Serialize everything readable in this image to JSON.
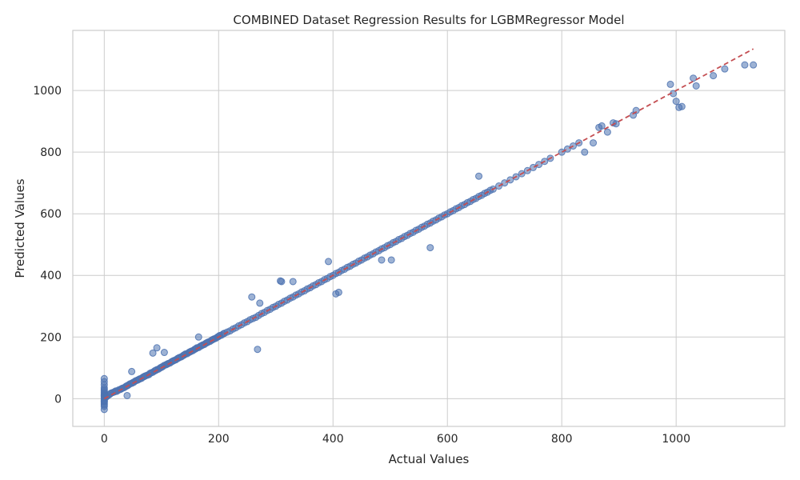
{
  "chart_data": {
    "type": "scatter",
    "title": "COMBINED Dataset Regression Results for LGBMRegressor Model",
    "xlabel": "Actual Values",
    "ylabel": "Predicted Values",
    "xlim": [
      -55,
      1190
    ],
    "ylim": [
      -90,
      1195
    ],
    "xticks": [
      0,
      200,
      400,
      600,
      800,
      1000
    ],
    "yticks": [
      0,
      200,
      400,
      600,
      800,
      1000
    ],
    "grid": true,
    "legend": "none",
    "point_color": "#4c72b0",
    "reference_line": {
      "style": "dashed",
      "color": "#c44e52",
      "x": [
        0,
        1135
      ],
      "y": [
        0,
        1135
      ]
    },
    "points": {
      "x": [
        0,
        0,
        0,
        0,
        0,
        0,
        0,
        0,
        0,
        0,
        0,
        0,
        0,
        0,
        0,
        0,
        0,
        0,
        0,
        0,
        3,
        5,
        8,
        10,
        12,
        15,
        18,
        20,
        22,
        25,
        28,
        30,
        32,
        35,
        38,
        40,
        42,
        45,
        48,
        50,
        52,
        55,
        58,
        60,
        62,
        65,
        68,
        70,
        72,
        75,
        78,
        80,
        82,
        85,
        88,
        90,
        92,
        95,
        98,
        100,
        102,
        105,
        108,
        110,
        112,
        115,
        118,
        120,
        122,
        125,
        128,
        130,
        132,
        135,
        138,
        140,
        142,
        145,
        148,
        150,
        152,
        155,
        158,
        160,
        162,
        165,
        168,
        170,
        172,
        175,
        178,
        180,
        182,
        185,
        188,
        190,
        192,
        195,
        198,
        200,
        202,
        205,
        208,
        210,
        215,
        220,
        225,
        230,
        235,
        240,
        245,
        250,
        255,
        260,
        265,
        270,
        275,
        280,
        285,
        290,
        295,
        300,
        305,
        310,
        315,
        320,
        325,
        330,
        335,
        340,
        345,
        350,
        355,
        360,
        365,
        370,
        375,
        380,
        385,
        390,
        395,
        400,
        405,
        410,
        415,
        420,
        425,
        430,
        435,
        440,
        445,
        450,
        455,
        460,
        465,
        470,
        475,
        480,
        485,
        490,
        495,
        500,
        505,
        510,
        515,
        520,
        525,
        530,
        535,
        540,
        545,
        550,
        555,
        560,
        565,
        570,
        575,
        580,
        585,
        590,
        595,
        600,
        605,
        610,
        615,
        620,
        625,
        630,
        635,
        640,
        645,
        650,
        655,
        660,
        665,
        670,
        675,
        680,
        690,
        700,
        710,
        720,
        730,
        740,
        750,
        760,
        770,
        780,
        800,
        810,
        820,
        830,
        840,
        855,
        865,
        870,
        880,
        890,
        895,
        925,
        930,
        990,
        995,
        1000,
        1005,
        1010,
        1030,
        1035,
        1065,
        1085,
        1120,
        1135,
        40,
        48,
        85,
        92,
        105,
        165,
        258,
        268,
        272,
        308,
        310,
        330,
        392,
        405,
        410,
        485,
        502,
        570,
        655
      ],
      "y": [
        0,
        -35,
        -25,
        -15,
        -10,
        -5,
        5,
        10,
        15,
        20,
        25,
        30,
        45,
        55,
        65,
        35,
        -20,
        12,
        8,
        -8,
        5,
        8,
        12,
        15,
        18,
        20,
        22,
        25,
        24,
        28,
        30,
        32,
        34,
        36,
        40,
        42,
        44,
        48,
        50,
        52,
        54,
        58,
        60,
        62,
        64,
        66,
        70,
        72,
        74,
        76,
        78,
        82,
        84,
        86,
        90,
        92,
        94,
        96,
        100,
        102,
        104,
        108,
        110,
        112,
        114,
        116,
        120,
        122,
        124,
        126,
        130,
        132,
        134,
        136,
        140,
        142,
        145,
        146,
        150,
        152,
        154,
        156,
        160,
        162,
        165,
        166,
        170,
        172,
        174,
        176,
        180,
        182,
        184,
        186,
        190,
        192,
        194,
        196,
        200,
        202,
        205,
        206,
        210,
        212,
        216,
        220,
        226,
        230,
        236,
        240,
        246,
        250,
        256,
        260,
        264,
        270,
        276,
        280,
        286,
        290,
        296,
        300,
        306,
        310,
        316,
        320,
        326,
        330,
        336,
        340,
        346,
        350,
        356,
        360,
        366,
        370,
        376,
        380,
        386,
        390,
        396,
        400,
        406,
        410,
        416,
        420,
        426,
        430,
        436,
        440,
        446,
        450,
        456,
        460,
        466,
        470,
        476,
        480,
        486,
        490,
        496,
        500,
        506,
        510,
        516,
        520,
        526,
        530,
        536,
        540,
        546,
        550,
        556,
        560,
        566,
        570,
        576,
        580,
        586,
        590,
        596,
        600,
        606,
        610,
        616,
        620,
        626,
        630,
        636,
        640,
        646,
        650,
        656,
        660,
        666,
        670,
        676,
        680,
        690,
        700,
        710,
        720,
        730,
        740,
        750,
        760,
        770,
        780,
        800,
        810,
        820,
        830,
        800,
        830,
        880,
        885,
        865,
        895,
        892,
        920,
        935,
        1020,
        990,
        965,
        945,
        948,
        1040,
        1015,
        1048,
        1070,
        1083,
        1083,
        10,
        88,
        148,
        165,
        150,
        200,
        330,
        160,
        310,
        382,
        380,
        380,
        445,
        340,
        345,
        450,
        450,
        490,
        722
      ]
    }
  }
}
